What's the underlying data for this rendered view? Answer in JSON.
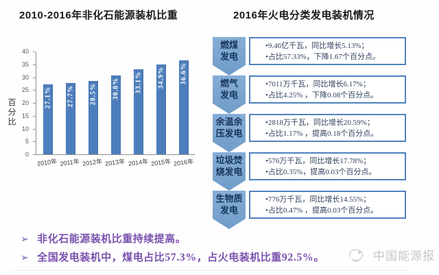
{
  "left_chart": {
    "title": "2010-2016年非化石能源装机比重",
    "y_axis_title": "百分比"
  },
  "chart_data": {
    "type": "bar",
    "title": "2010-2016年非化石能源装机比重",
    "categories": [
      "2010年",
      "2011年",
      "2012年",
      "2013年",
      "2014年",
      "2015年",
      "2016年"
    ],
    "values": [
      27.1,
      27.7,
      28.5,
      30.8,
      33.1,
      34.9,
      36.6
    ],
    "value_labels": [
      "27.1%",
      "27.7%",
      "28.5%",
      "30.8%",
      "33.1%",
      "34.9%",
      "36.6%"
    ],
    "xlabel": "",
    "ylabel": "百分比",
    "ylim": [
      0,
      40
    ],
    "yticks": [
      0,
      5,
      10,
      15,
      20,
      25,
      30,
      35,
      40
    ],
    "grid": false,
    "legend": false,
    "bar_color": "#4d7ebc",
    "value_label_color": "#ffffff"
  },
  "right_panel": {
    "title": "2016年火电分类发电装机情况",
    "rows": [
      {
        "label_line1": "燃煤",
        "label_line2": "发电",
        "bullet1": "•9.46亿千瓦，同比增长5.13%；",
        "bullet2": "•占比57.33%，下降1.67个百分点。"
      },
      {
        "label_line1": "燃气",
        "label_line2": "发电",
        "bullet1": "•7011万千瓦，同比增长6.17%；",
        "bullet2": "•占比4.25% ，下降0.08个百分点。"
      },
      {
        "label_line1": "余温余",
        "label_line2": "压发电",
        "bullet1": "•2818万千瓦，同比增长20.59%；",
        "bullet2": "•占比1.17% ，提高0.18个百分点。"
      },
      {
        "label_line1": "垃圾焚",
        "label_line2": "烧发电",
        "bullet1": "•576万千瓦，同比增长17.78%；",
        "bullet2": "•占比0.35%，提高0.03个百分点。"
      },
      {
        "label_line1": "生物质",
        "label_line2": "发电",
        "bullet1": "•776万千瓦，同比增长14.55%；",
        "bullet2": "•占比0.47% ，提高0.03个百分点。"
      }
    ]
  },
  "summary": {
    "bullet_glyph": "➢",
    "line1": "非化石能源装机比重持续提高。",
    "line2_part1": "全国发电装机中，煤电占比",
    "line2_bold1": "57.3%",
    "line2_part2": "，占火电装机比重",
    "line2_bold2": "92.5%",
    "line2_part3": "。"
  },
  "watermark": {
    "text": "中国能源报"
  },
  "colors": {
    "bar": "#4d7ebc",
    "arrow_fill": "#7aa5ce",
    "box_border": "#4f81bd",
    "summary_purple": "#7b52ae",
    "watermark_gray": "#c8c8c8"
  }
}
